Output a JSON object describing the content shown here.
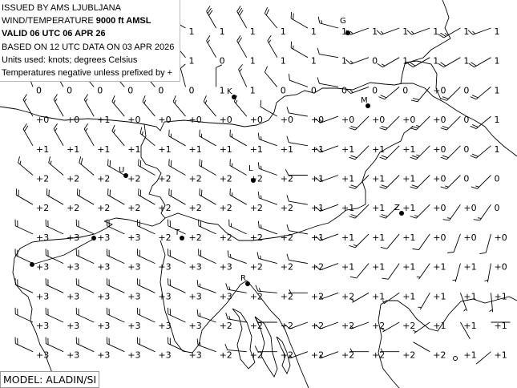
{
  "header": {
    "issued_by": "ISSUED BY AMS LJUBLJANA",
    "product_prefix": "WIND/TEMPERATURE ",
    "product_level": "9000 ft AMSL",
    "valid": "VALID 06 UTC 06 APR 26",
    "based_on": "BASED ON 12 UTC DATA ON 03 APR 2026",
    "units": "Units used: knots; degrees Celsius",
    "note": "Temperatures negative unless prefixed by +"
  },
  "model": "MODEL: ALADIN/SI",
  "colors": {
    "ink": "#000000",
    "background": "#ffffff"
  },
  "cities": [
    {
      "label": "G"
    },
    {
      "label": "K"
    },
    {
      "label": "M"
    },
    {
      "label": "U"
    },
    {
      "label": "L"
    },
    {
      "label": "Z"
    },
    {
      "label": "T"
    },
    {
      "label": "R"
    }
  ],
  "temperatures": [
    [
      null,
      null,
      null,
      null,
      null,
      "1",
      "1",
      "1",
      "1",
      "1",
      "1",
      "1",
      "1",
      "1",
      "1",
      "1"
    ],
    [
      null,
      null,
      null,
      null,
      null,
      "1",
      "0",
      "1",
      "1",
      "1",
      "1",
      "0",
      "1",
      "1",
      "1",
      "1"
    ],
    [
      "0",
      "0",
      "0",
      "0",
      "0",
      "0",
      "1",
      "1",
      "0",
      "0",
      "0",
      "0",
      "0",
      "+0",
      "0",
      "1"
    ],
    [
      "+0",
      "+0",
      "+1",
      "+0",
      "+0",
      "+0",
      "+0",
      "+0",
      "+0",
      "+0",
      "+0",
      "+0",
      "+0",
      "+0",
      "0",
      "1"
    ],
    [
      "+1",
      "+1",
      "+1",
      "+1",
      "+1",
      "+1",
      "+1",
      "+1",
      "+1",
      "+1",
      "+1",
      "+1",
      "+1",
      "+0",
      "0",
      "1"
    ],
    [
      "+2",
      "+2",
      "+2",
      "+2",
      "+2",
      "+2",
      "+2",
      "+2",
      "+2",
      "+1",
      "+1",
      "+1",
      "+1",
      "+0",
      "0",
      "0"
    ],
    [
      "+2",
      "+2",
      "+2",
      "+2",
      "+2",
      "+2",
      "+2",
      "+2",
      "+2",
      "+1",
      "+1",
      "+1",
      "+1",
      "+0",
      "+0",
      "0"
    ],
    [
      "+3",
      "+3",
      "+3",
      "+3",
      "+2",
      "+2",
      "+2",
      "+2",
      "+2",
      "+1",
      "+1",
      "+1",
      "+1",
      "+0",
      "+0",
      "+0"
    ],
    [
      "+3",
      "+3",
      "+3",
      "+3",
      "+3",
      "+3",
      "+3",
      "+2",
      "+2",
      "+2",
      "+1",
      "+1",
      "+1",
      "+1",
      "+1",
      "+0"
    ],
    [
      "+3",
      "+3",
      "+3",
      "+3",
      "+3",
      "+3",
      "+3",
      "+2",
      "+2",
      "+2",
      "+2",
      "+1",
      "+1",
      "+1",
      "+1",
      "+1"
    ],
    [
      "+3",
      "+3",
      "+3",
      "+3",
      "+3",
      "+3",
      "+2",
      "+2",
      "+2",
      "+2",
      "+2",
      "+2",
      "+2",
      "+1",
      "+1",
      "+1"
    ],
    [
      "+3",
      "+3",
      "+3",
      "+3",
      "+3",
      "+3",
      "+2",
      "+2",
      "+2",
      "+2",
      "+2",
      "+2",
      "+2",
      "+2",
      "+1",
      "+1"
    ]
  ],
  "wind_direction_deg": [
    [
      null,
      null,
      null,
      null,
      null,
      300,
      330,
      330,
      320,
      300,
      285,
      250,
      250,
      250,
      240,
      250
    ],
    [
      null,
      null,
      null,
      null,
      null,
      320,
      330,
      330,
      330,
      300,
      280,
      250,
      240,
      240,
      240,
      240
    ],
    [
      340,
      330,
      320,
      320,
      320,
      345,
      0,
      335,
      320,
      290,
      280,
      250,
      230,
      220,
      225,
      230
    ],
    [
      330,
      330,
      330,
      320,
      320,
      320,
      320,
      320,
      300,
      280,
      250,
      225,
      225,
      225,
      225,
      230
    ],
    [
      330,
      330,
      330,
      320,
      310,
      300,
      300,
      300,
      290,
      280,
      250,
      225,
      225,
      225,
      225,
      230
    ],
    [
      310,
      310,
      310,
      300,
      300,
      300,
      300,
      300,
      290,
      270,
      250,
      225,
      225,
      225,
      225,
      225
    ],
    [
      300,
      300,
      300,
      300,
      300,
      300,
      300,
      300,
      290,
      280,
      250,
      225,
      225,
      225,
      215,
      215
    ],
    [
      295,
      295,
      295,
      295,
      295,
      295,
      295,
      295,
      290,
      280,
      250,
      225,
      220,
      215,
      200,
      195
    ],
    [
      295,
      295,
      295,
      295,
      295,
      295,
      295,
      290,
      285,
      280,
      250,
      220,
      215,
      215,
      195,
      190
    ],
    [
      295,
      295,
      295,
      295,
      295,
      295,
      290,
      280,
      275,
      270,
      250,
      240,
      235,
      210,
      160,
      175
    ],
    [
      295,
      295,
      295,
      295,
      295,
      295,
      290,
      280,
      270,
      250,
      250,
      250,
      240,
      235,
      150,
      90
    ],
    [
      295,
      295,
      295,
      295,
      295,
      295,
      290,
      275,
      270,
      250,
      250,
      270,
      270,
      300,
      null,
      230
    ]
  ],
  "wind_speed_kt": [
    [
      null,
      null,
      null,
      null,
      null,
      10,
      30,
      30,
      20,
      20,
      15,
      15,
      15,
      15,
      25,
      15
    ],
    [
      null,
      null,
      null,
      null,
      null,
      15,
      15,
      20,
      15,
      15,
      10,
      15,
      15,
      20,
      20,
      20
    ],
    [
      10,
      10,
      10,
      10,
      10,
      10,
      10,
      15,
      10,
      10,
      10,
      15,
      20,
      20,
      20,
      20
    ],
    [
      15,
      15,
      15,
      15,
      15,
      15,
      15,
      15,
      10,
      10,
      15,
      20,
      20,
      25,
      20,
      20
    ],
    [
      20,
      15,
      15,
      15,
      15,
      15,
      15,
      15,
      15,
      10,
      15,
      20,
      20,
      25,
      20,
      20
    ],
    [
      15,
      15,
      20,
      20,
      20,
      20,
      20,
      15,
      15,
      10,
      15,
      20,
      20,
      20,
      15,
      15
    ],
    [
      20,
      20,
      20,
      20,
      20,
      20,
      20,
      15,
      15,
      10,
      15,
      20,
      20,
      15,
      15,
      15
    ],
    [
      20,
      20,
      20,
      20,
      20,
      20,
      20,
      15,
      15,
      10,
      15,
      15,
      10,
      10,
      10,
      10
    ],
    [
      20,
      20,
      20,
      20,
      20,
      20,
      20,
      15,
      15,
      10,
      10,
      10,
      10,
      5,
      5,
      5
    ],
    [
      20,
      20,
      20,
      20,
      20,
      20,
      15,
      15,
      15,
      5,
      5,
      5,
      5,
      5,
      5,
      5
    ],
    [
      20,
      20,
      20,
      20,
      20,
      20,
      15,
      15,
      10,
      10,
      10,
      5,
      5,
      5,
      0,
      0
    ],
    [
      20,
      20,
      20,
      20,
      20,
      20,
      15,
      10,
      10,
      5,
      5,
      5,
      5,
      0,
      0,
      0
    ]
  ]
}
